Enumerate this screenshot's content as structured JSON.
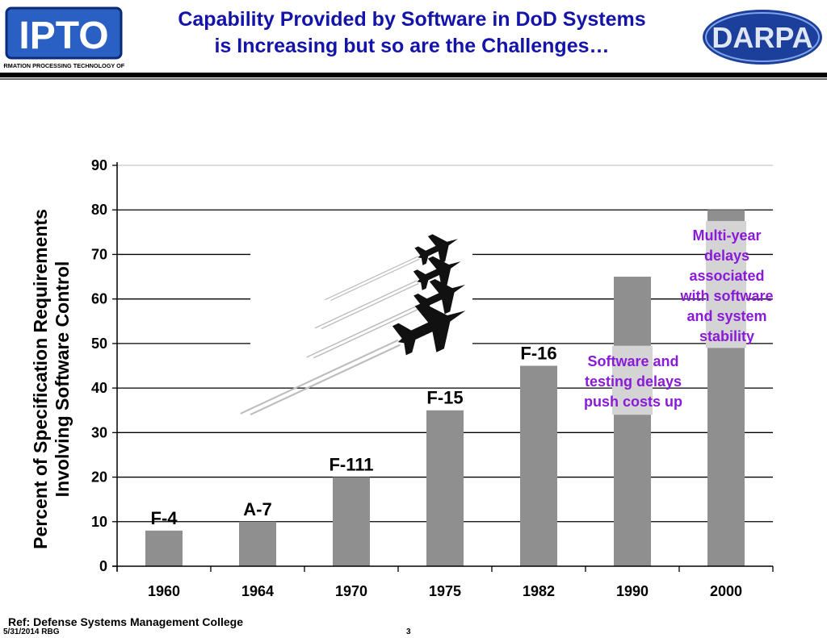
{
  "header": {
    "title_line1": "Capability Provided by Software in DoD Systems",
    "title_line2": "is Increasing but so are the Challenges…",
    "left_logo_text": "IPTO",
    "left_logo_caption": "INFORMATION PROCESSING TECHNOLOGY OFFICE",
    "right_logo_text": "DARPA"
  },
  "chart_data": {
    "type": "bar",
    "title": "",
    "xlabel": "",
    "ylabel": [
      "Percent of Specification Requirements",
      "Involving Software Control"
    ],
    "categories": [
      "1960",
      "1964",
      "1970",
      "1975",
      "1982",
      "1990",
      "2000"
    ],
    "values": [
      8,
      10,
      20,
      35,
      45,
      65,
      80
    ],
    "bar_labels": [
      "F-4",
      "A-7",
      "F-111",
      "F-15",
      "F-16",
      "",
      ""
    ],
    "ylim": [
      0,
      90
    ],
    "yticks": [
      0,
      10,
      20,
      30,
      40,
      50,
      60,
      70,
      80,
      90
    ],
    "grid": true,
    "bar_color": "#8f8f8f",
    "annotations": [
      {
        "lines": [
          "Software and",
          "testing delays",
          "push costs up"
        ],
        "category": "1990"
      },
      {
        "lines": [
          "Multi-year",
          "delays",
          "associated",
          "with software",
          "and system",
          "stability"
        ],
        "category": "2000"
      }
    ]
  },
  "footer": {
    "reference": "Ref:  Defense Systems Management College",
    "date": "5/31/2014 RBG",
    "page": "3"
  }
}
